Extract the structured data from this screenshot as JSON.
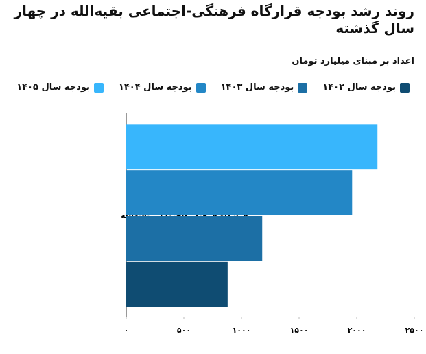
{
  "chart_data": {
    "type": "hbar",
    "title": "روند رشد بودجه قرارگاه فرهنگی-اجتماعی بقیه‌الله در چهار سال گذشته",
    "subtitle": "اعداد بر مبنای میلیارد تومان",
    "categories": [
      "قرارگاه فرهنگی-اجتماعی بقیه‌الله"
    ],
    "series": [
      {
        "name": "بودجه سال ۱۴۰۲",
        "color": "#0f4c72",
        "values": [
          880
        ]
      },
      {
        "name": "بودجه سال ۱۴۰۳",
        "color": "#1c6fa5",
        "values": [
          1180
        ]
      },
      {
        "name": "بودجه سال ۱۴۰۴",
        "color": "#2387c6",
        "values": [
          1960
        ]
      },
      {
        "name": "بودجه سال ۱۴۰۵",
        "color": "#38b6fc",
        "values": [
          2180
        ]
      }
    ],
    "xlim": [
      0,
      2500
    ],
    "xticks": [
      {
        "value": 0,
        "label": "۰"
      },
      {
        "value": 500,
        "label": "۵۰۰"
      },
      {
        "value": 1000,
        "label": "۱۰۰۰"
      },
      {
        "value": 1500,
        "label": "۱۵۰۰"
      },
      {
        "value": 2000,
        "label": "۲۰۰۰"
      },
      {
        "value": 2500,
        "label": "۲۵۰۰"
      }
    ],
    "grid": false
  }
}
